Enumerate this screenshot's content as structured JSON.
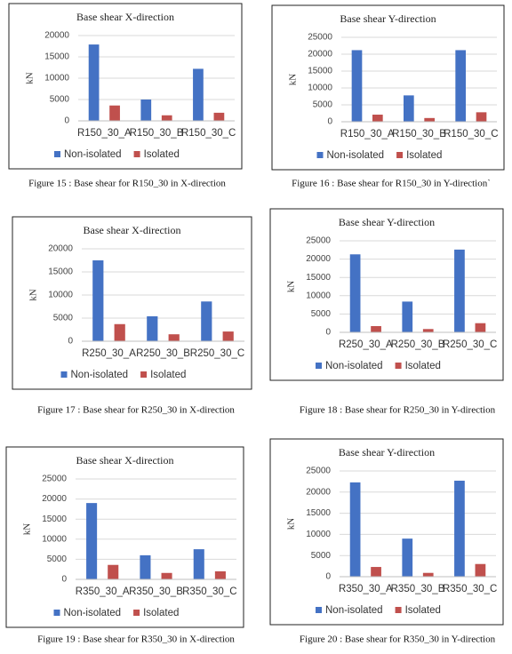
{
  "chart_data": [
    {
      "type": "bar",
      "title": "Base shear X-direction",
      "ylabel": "kN",
      "caption": "Figure 15 : Base shear for R150_30 in X-direction",
      "categories": [
        "R150_30_A",
        "R150_30_B",
        "R150_30_C"
      ],
      "series": [
        {
          "name": "Non-isolated",
          "color": "#4472c4",
          "values": [
            17900,
            5000,
            12200
          ]
        },
        {
          "name": "Isolated",
          "color": "#c0504d",
          "values": [
            3600,
            1300,
            1900
          ]
        }
      ],
      "ylim": [
        0,
        20000
      ],
      "yticks": [
        0,
        5000,
        10000,
        15000,
        20000
      ],
      "grid": true
    },
    {
      "type": "bar",
      "title": "Base shear Y-direction",
      "ylabel": "kN",
      "caption": "Figure 16 : Base shear for R150_30 in Y-direction`",
      "categories": [
        "R150_30_A",
        "R150_30_B",
        "R150_30_C"
      ],
      "series": [
        {
          "name": "Non-isolated",
          "color": "#4472c4",
          "values": [
            21200,
            7800,
            21200
          ]
        },
        {
          "name": "Isolated",
          "color": "#c0504d",
          "values": [
            2100,
            1100,
            2800
          ]
        }
      ],
      "ylim": [
        0,
        25000
      ],
      "yticks": [
        0,
        5000,
        10000,
        15000,
        20000,
        25000
      ],
      "grid": true
    },
    {
      "type": "bar",
      "title": "Base shear X-direction",
      "ylabel": "kN",
      "caption": "Figure 17 : Base shear for R250_30 in X-direction",
      "categories": [
        "R250_30_A",
        "R250_30_B",
        "R250_30_C"
      ],
      "series": [
        {
          "name": "Non-isolated",
          "color": "#4472c4",
          "values": [
            17500,
            5400,
            8600
          ]
        },
        {
          "name": "Isolated",
          "color": "#c0504d",
          "values": [
            3700,
            1500,
            2100
          ]
        }
      ],
      "ylim": [
        0,
        20000
      ],
      "yticks": [
        0,
        5000,
        10000,
        15000,
        20000
      ],
      "grid": true
    },
    {
      "type": "bar",
      "title": "Base shear Y-direction",
      "ylabel": "kN",
      "caption": "Figure 18 : Base shear for R250_30 in Y-direction",
      "categories": [
        "R250_30_A",
        "R250_30_B",
        "R250_30_C"
      ],
      "series": [
        {
          "name": "Non-isolated",
          "color": "#4472c4",
          "values": [
            21300,
            8400,
            22600
          ]
        },
        {
          "name": "Isolated",
          "color": "#c0504d",
          "values": [
            1700,
            900,
            2500
          ]
        }
      ],
      "ylim": [
        0,
        25000
      ],
      "yticks": [
        0,
        5000,
        10000,
        15000,
        20000,
        25000
      ],
      "grid": true
    },
    {
      "type": "bar",
      "title": "Base shear X-direction",
      "ylabel": "kN",
      "caption": "Figure 19 : Base shear for R350_30 in X-direction",
      "categories": [
        "R350_30_A",
        "R350_30_B",
        "R350_30_C"
      ],
      "series": [
        {
          "name": "Non-isolated",
          "color": "#4472c4",
          "values": [
            19000,
            6000,
            7500
          ]
        },
        {
          "name": "Isolated",
          "color": "#c0504d",
          "values": [
            3600,
            1600,
            2000
          ]
        }
      ],
      "ylim": [
        0,
        25000
      ],
      "yticks": [
        0,
        5000,
        10000,
        15000,
        20000,
        25000
      ],
      "grid": true
    },
    {
      "type": "bar",
      "title": "Base shear Y-direction",
      "ylabel": "kN",
      "caption": "Figure 20 : Base shear for R350_30 in Y-direction",
      "categories": [
        "R350_30_A",
        "R350_30_B",
        "R350_30_C"
      ],
      "series": [
        {
          "name": "Non-isolated",
          "color": "#4472c4",
          "values": [
            22300,
            9000,
            22700
          ]
        },
        {
          "name": "Isolated",
          "color": "#c0504d",
          "values": [
            2300,
            900,
            3000
          ]
        }
      ],
      "ylim": [
        0,
        25000
      ],
      "yticks": [
        0,
        5000,
        10000,
        15000,
        20000,
        25000
      ],
      "grid": true
    }
  ]
}
